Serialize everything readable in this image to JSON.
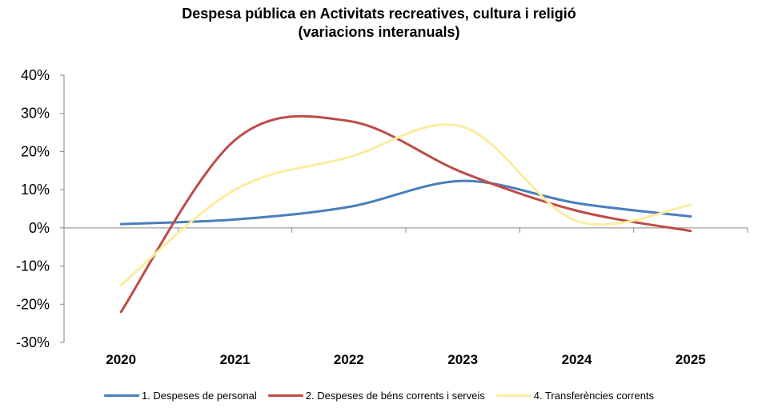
{
  "chart_data": {
    "type": "line",
    "title": "Despesa pública en Activitats recreatives, cultura i religió",
    "subtitle": "(variacions interanuals)",
    "categories": [
      "2020",
      "2021",
      "2022",
      "2023",
      "2024",
      "2025"
    ],
    "ylim": [
      -30,
      40
    ],
    "yticks": [
      "40%",
      "30%",
      "20%",
      "10%",
      "0%",
      "-10%",
      "-20%",
      "-30%"
    ],
    "ytick_values": [
      40,
      30,
      20,
      10,
      0,
      -10,
      -20,
      -30
    ],
    "series": [
      {
        "name": "1. Despeses de personal",
        "color": "#4a7ebb",
        "values": [
          1.0,
          2.2,
          5.5,
          12.3,
          6.5,
          3.0
        ]
      },
      {
        "name": "2. Despeses de béns corrents i serveis",
        "color": "#be4b48",
        "values": [
          -22.0,
          23.0,
          28.0,
          14.5,
          4.5,
          -0.8
        ]
      },
      {
        "name": "4. Transferències corrents",
        "color": "#fcec9f",
        "values": [
          -15.0,
          10.0,
          18.5,
          26.5,
          1.8,
          6.0
        ]
      }
    ],
    "legend_position": "bottom",
    "grid": false
  }
}
